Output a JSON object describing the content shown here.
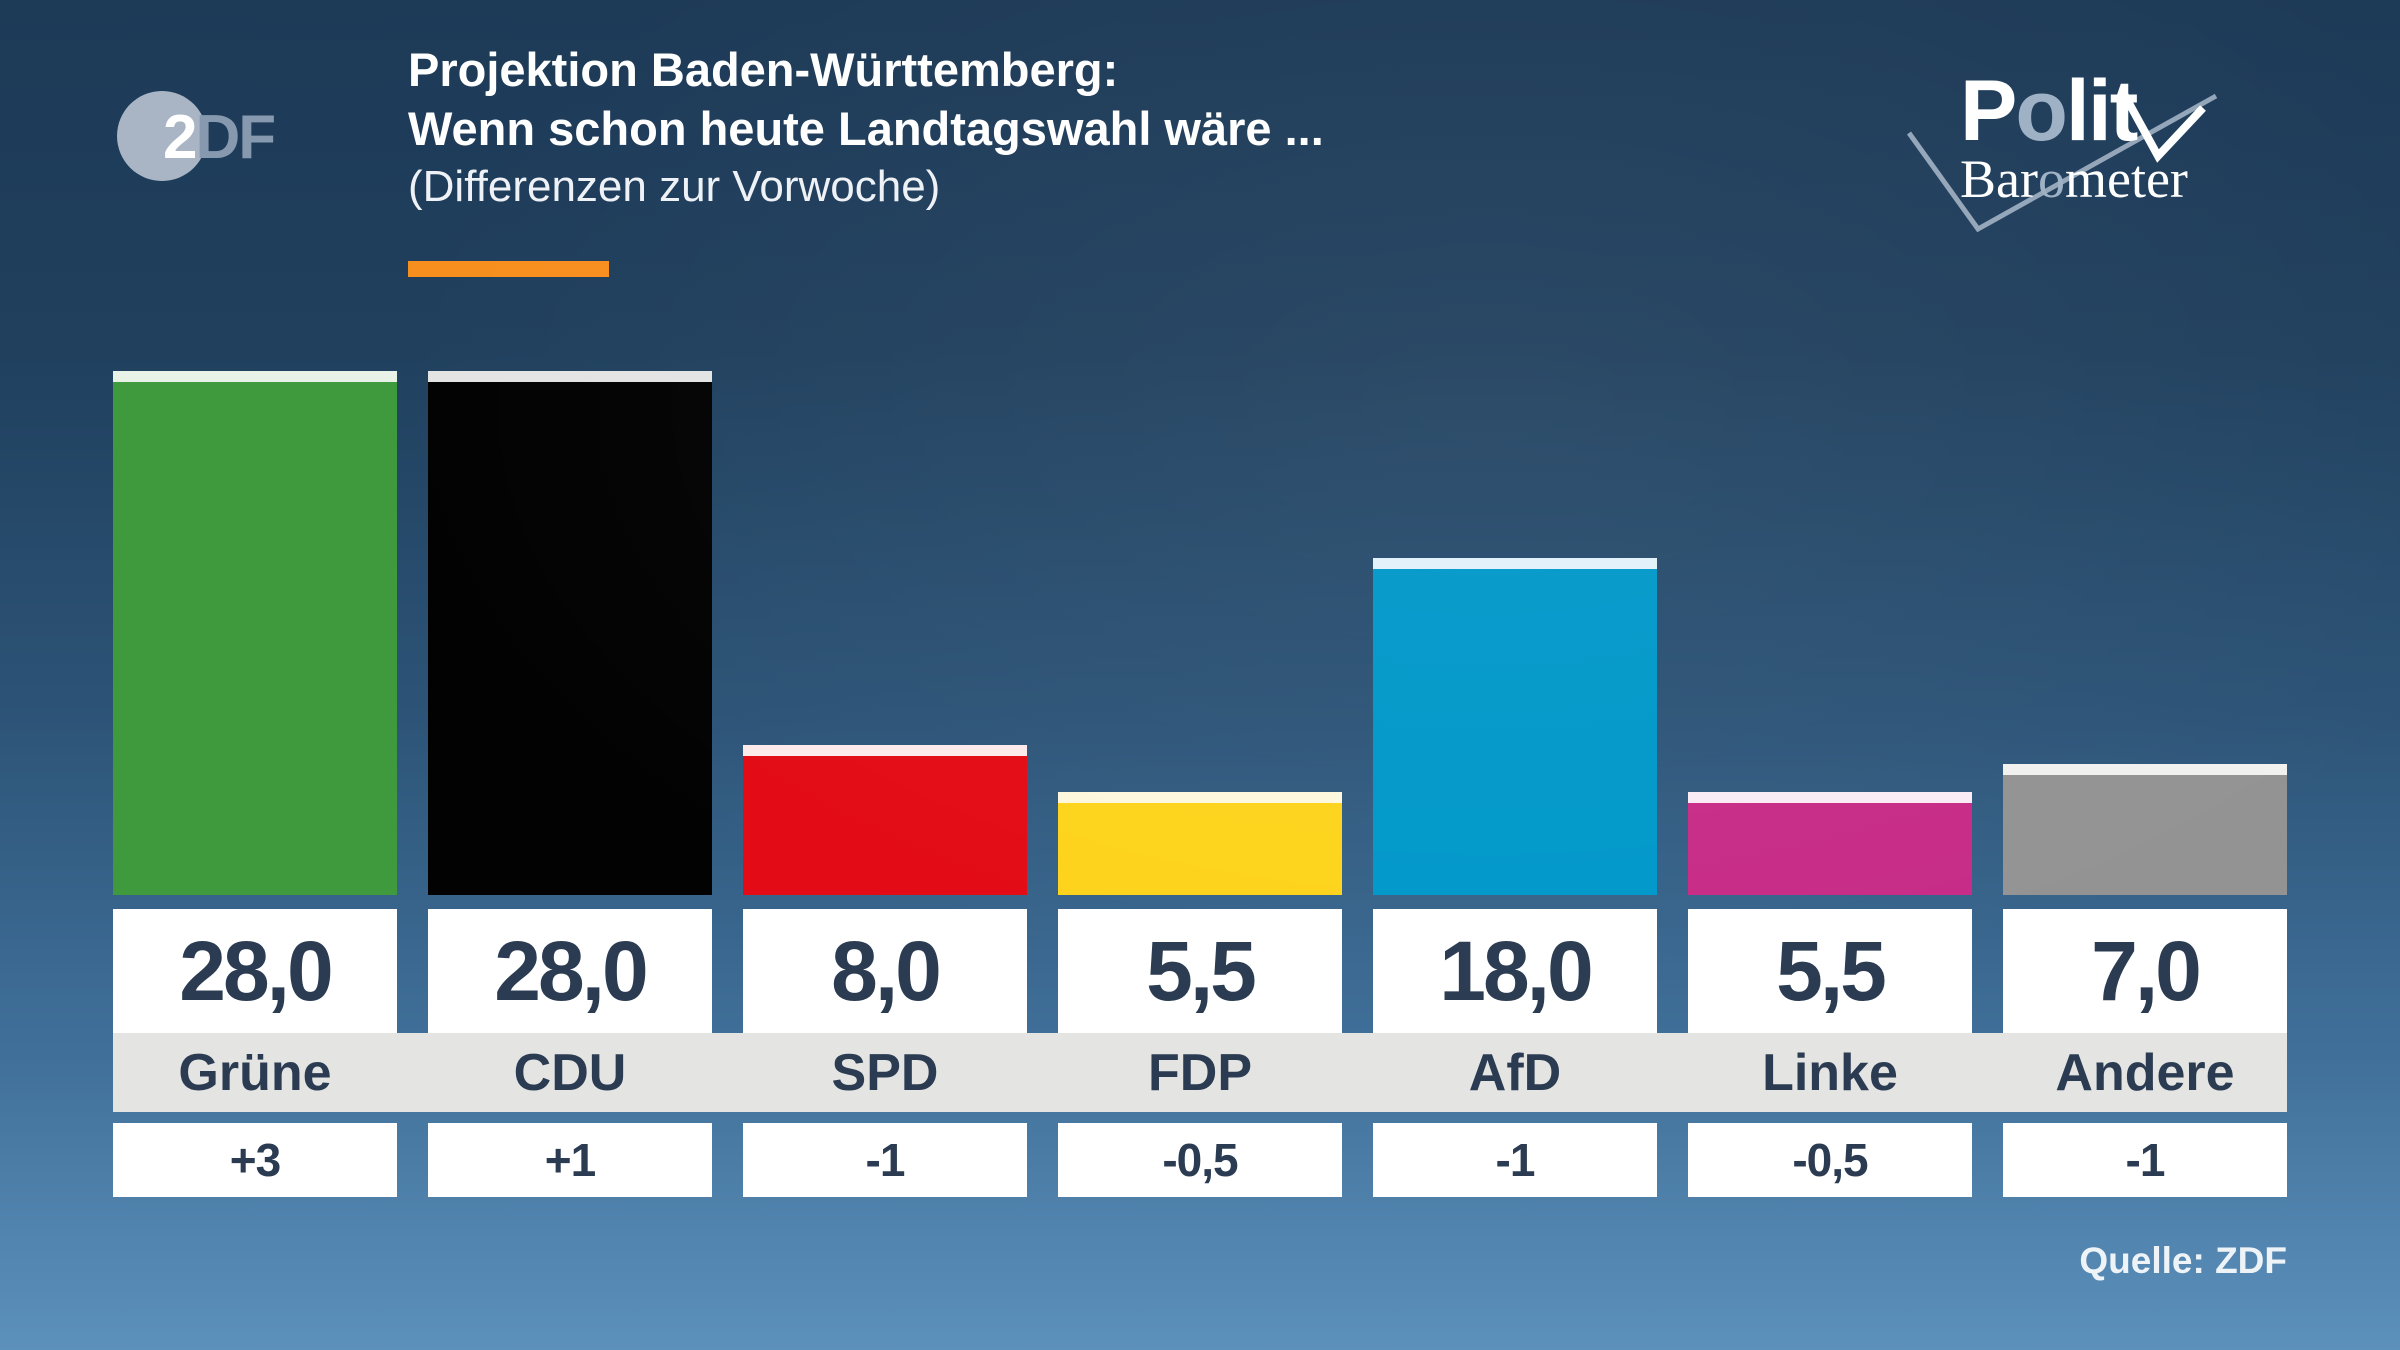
{
  "header": {
    "zdf_logo": {
      "two": "2",
      "df": "DF"
    },
    "title_line1": "Projektion Baden-Württemberg:",
    "title_line2": "Wenn schon heute Landtagswahl wäre ...",
    "subtitle": "(Differenzen zur Vorwoche)",
    "accent_color": "#f78f1e",
    "politbarometer": {
      "l1_pre": "P",
      "l1_o": "o",
      "l1_post": "lit",
      "l2_pre": "Bar",
      "l2_o": "o",
      "l2_post": "meter",
      "o_color": "#9db0c4",
      "check_gray": "#93a5b8",
      "check_white": "#ffffff"
    }
  },
  "chart_data": {
    "type": "bar",
    "title": "Projektion Baden-Württemberg: Wenn schon heute Landtagswahl wäre ...",
    "subtitle": "(Differenzen zur Vorwoche)",
    "categories": [
      "Grüne",
      "CDU",
      "SPD",
      "FDP",
      "AfD",
      "Linke",
      "Andere"
    ],
    "values": [
      28.0,
      28.0,
      8.0,
      5.5,
      18.0,
      5.5,
      7.0
    ],
    "value_labels": [
      "28,0",
      "28,0",
      "8,0",
      "5,5",
      "18,0",
      "5,5",
      "7,0"
    ],
    "diffs": [
      3,
      1,
      -1,
      -0.5,
      -1,
      -0.5,
      -1
    ],
    "diff_labels": [
      "+3",
      "+1",
      "-1",
      "-0,5",
      "-1",
      "-0,5",
      "-1"
    ],
    "bar_colors": [
      "#3f9a3e",
      "#020202",
      "#e30b15",
      "#fdd31b",
      "#0098c9",
      "#c72c87",
      "#939393"
    ],
    "cap_colors": [
      "#e9f2e6",
      "#e4e4e4",
      "#fcebea",
      "#fdf8dd",
      "#e2f1fa",
      "#f9ecf4",
      "#f1f1ef"
    ],
    "ylim": [
      0,
      28
    ],
    "legend": "none",
    "grid": false
  },
  "footer": {
    "source": "Quelle: ZDF"
  }
}
